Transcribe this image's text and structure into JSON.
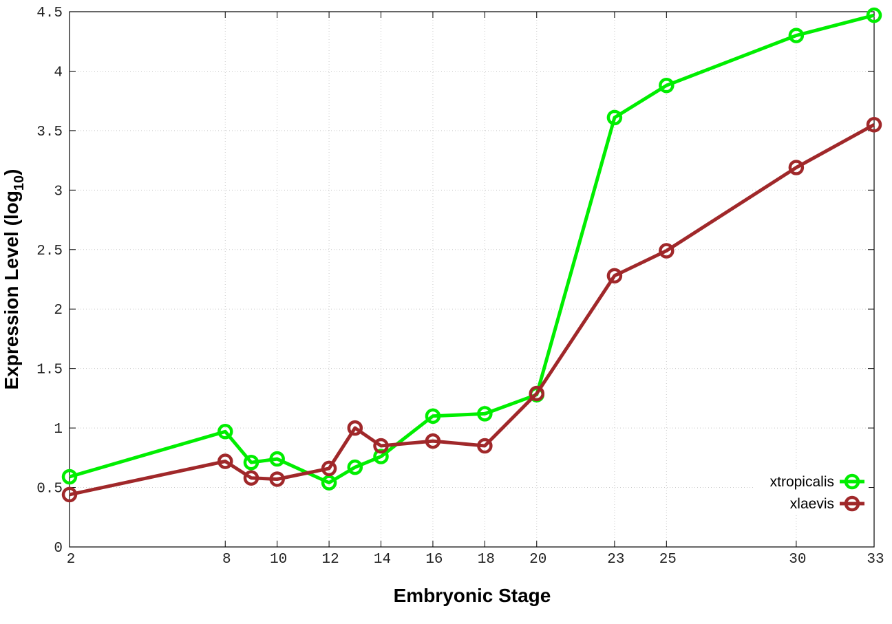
{
  "chart_data": {
    "type": "line",
    "title": "",
    "xlabel": "Embryonic Stage",
    "ylabel_main": "Expression Level (log",
    "ylabel_sub": "10",
    "ylabel_close": ")",
    "x_ticks": [
      2,
      8,
      10,
      12,
      14,
      16,
      18,
      20,
      23,
      25,
      30,
      33
    ],
    "y_ticks": [
      "0",
      "0.5",
      "1",
      "1.5",
      "2",
      "2.5",
      "3",
      "3.5",
      "4",
      "4.5"
    ],
    "xlim": [
      2,
      33
    ],
    "ylim": [
      0,
      4.5
    ],
    "grid": true,
    "legend_position": "bottom-right",
    "x": [
      2,
      8,
      9,
      10,
      12,
      13,
      14,
      16,
      18,
      20,
      23,
      25,
      30,
      33
    ],
    "series": [
      {
        "name": "xtropicalis",
        "color": "#00ee00",
        "values": [
          0.59,
          0.97,
          0.71,
          0.74,
          0.54,
          0.67,
          0.76,
          1.1,
          1.12,
          1.28,
          3.61,
          3.88,
          4.3,
          4.47
        ]
      },
      {
        "name": "xlaevis",
        "color": "#a0282a",
        "values": [
          0.44,
          0.72,
          0.58,
          0.57,
          0.66,
          1.0,
          0.85,
          0.89,
          0.85,
          1.29,
          2.28,
          2.49,
          3.19,
          3.55
        ]
      }
    ]
  }
}
